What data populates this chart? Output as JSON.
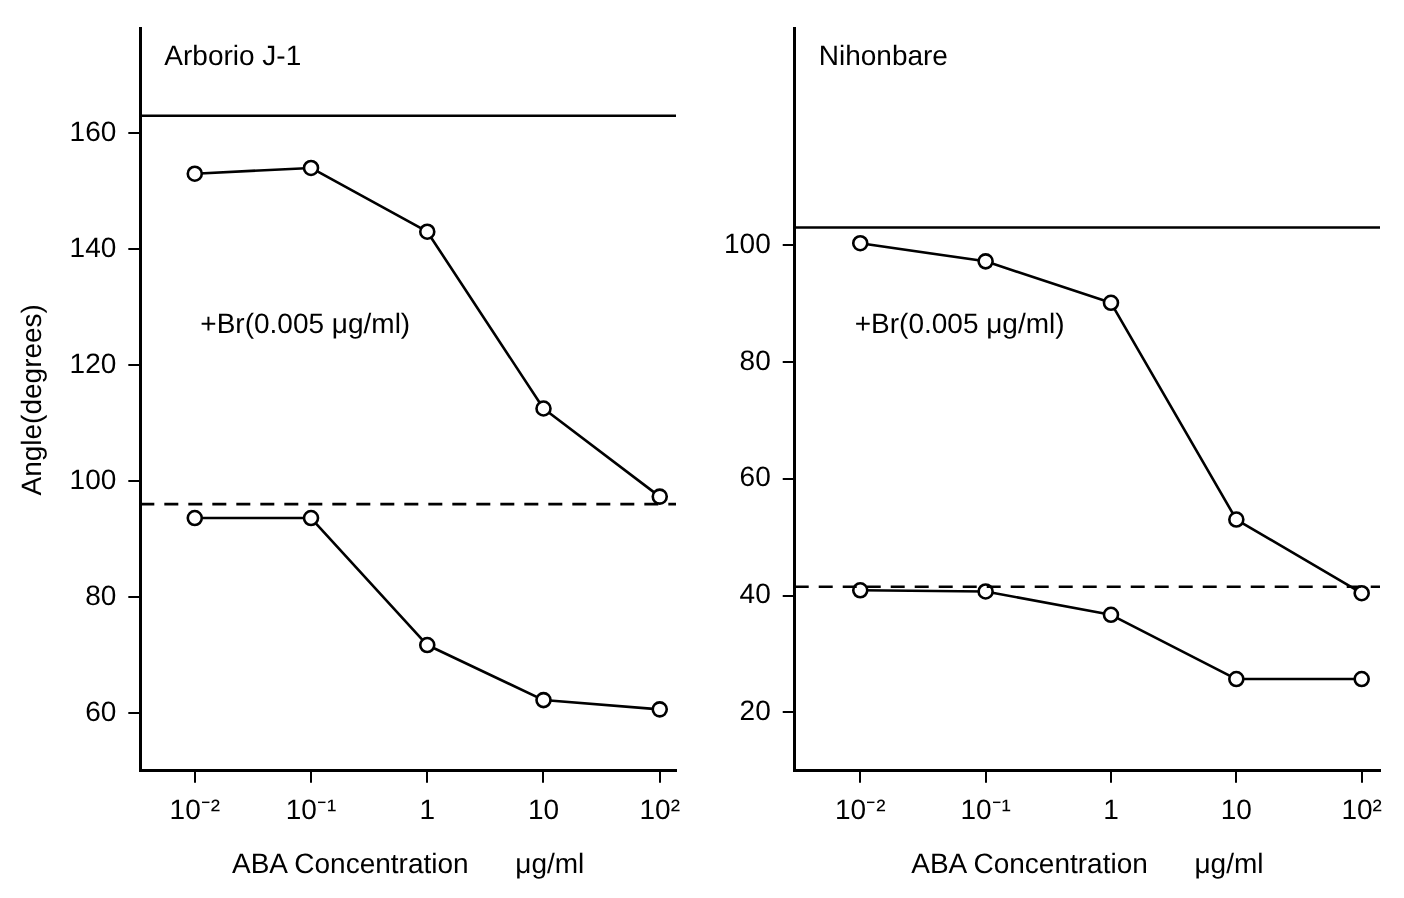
{
  "chart_data": [
    {
      "type": "line",
      "title": "Arborio J-1",
      "xlabel": "ABA Concentration      μg/ml",
      "ylabel": "Angle(degrees)",
      "x": [
        0.01,
        0.1,
        1,
        10,
        100
      ],
      "log": "x",
      "xlim": [
        0.0034,
        138
      ],
      "xticks": [
        {
          "value": 0.01,
          "label": "10⁻²"
        },
        {
          "value": 0.1,
          "label": "10⁻¹"
        },
        {
          "value": 1,
          "label": "1"
        },
        {
          "value": 10,
          "label": "10"
        },
        {
          "value": 100,
          "label": "10²"
        }
      ],
      "ylim": [
        50,
        178
      ],
      "yticks": [
        60,
        80,
        100,
        120,
        140,
        160
      ],
      "grid": false,
      "legend": false,
      "marker": "circle",
      "line_style": "solid",
      "series": [
        {
          "color": "#000000",
          "values": [
            153,
            154,
            143,
            112.5,
            97.3
          ]
        },
        {
          "color": "#000000",
          "values": [
            93.6,
            93.6,
            71.7,
            62.2,
            60.6
          ]
        }
      ],
      "ref_lines": [
        {
          "axis": "y",
          "value": 163,
          "color": "#000000",
          "line_style": "solid"
        },
        {
          "axis": "y",
          "value": 96,
          "color": "#000000",
          "line_style": "dashed"
        }
      ],
      "annotations": [
        "+Br(0.005 μg/ml)"
      ]
    },
    {
      "type": "line",
      "title": "Nihonbare",
      "xlabel": "ABA Concentration      μg/ml",
      "x": [
        0.01,
        0.1,
        1,
        10,
        100
      ],
      "log": "x",
      "xlim": [
        0.003,
        140
      ],
      "xticks": [
        {
          "value": 0.01,
          "label": "10⁻²"
        },
        {
          "value": 0.1,
          "label": "10⁻¹"
        },
        {
          "value": 1,
          "label": "1"
        },
        {
          "value": 10,
          "label": "10"
        },
        {
          "value": 100,
          "label": "10²"
        }
      ],
      "ylim": [
        10,
        137
      ],
      "yticks": [
        20,
        40,
        60,
        80,
        100
      ],
      "grid": false,
      "legend": false,
      "marker": "circle",
      "line_style": "solid",
      "series": [
        {
          "color": "#000000",
          "values": [
            100.3,
            97.2,
            90.1,
            53,
            40.4
          ]
        },
        {
          "color": "#000000",
          "values": [
            40.9,
            40.7,
            36.7,
            25.7,
            25.7
          ]
        }
      ],
      "ref_lines": [
        {
          "axis": "y",
          "value": 103,
          "color": "#000000",
          "line_style": "solid"
        },
        {
          "axis": "y",
          "value": 41.5,
          "color": "#000000",
          "line_style": "dashed"
        }
      ],
      "annotations": [
        "+Br(0.005 μg/ml)"
      ]
    }
  ]
}
